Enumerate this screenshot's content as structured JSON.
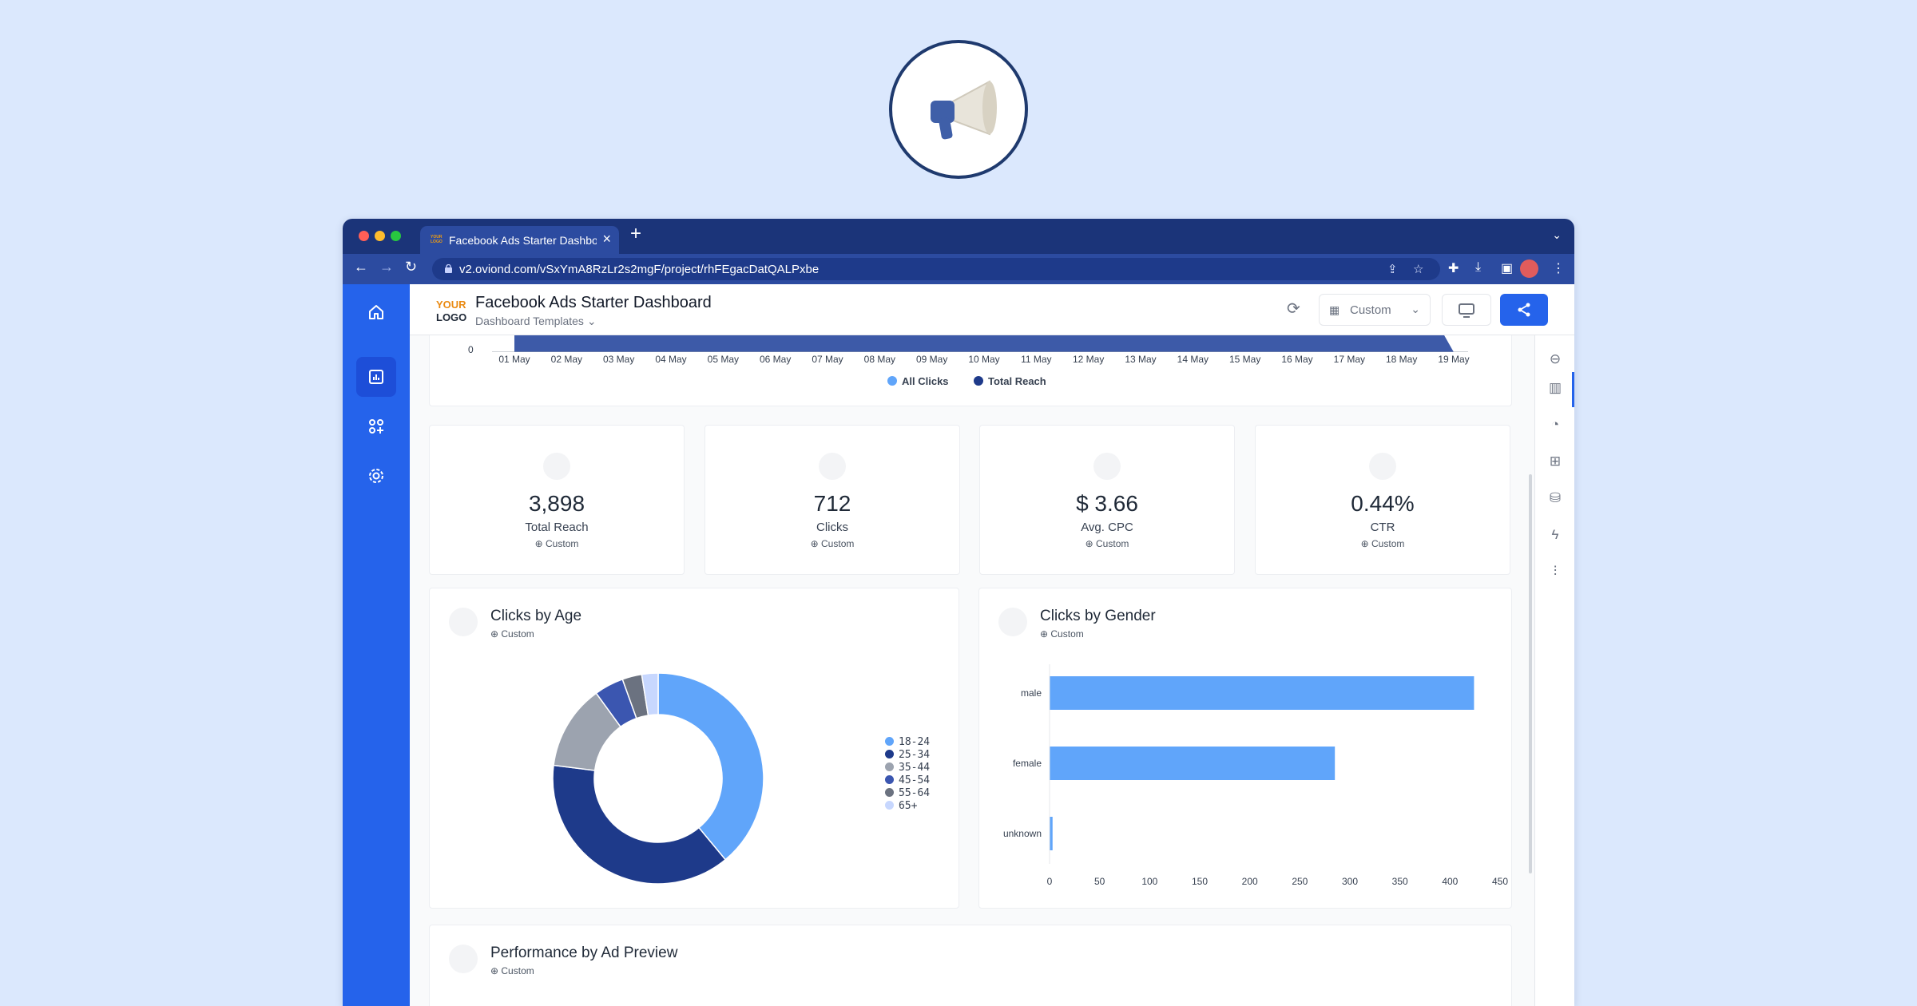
{
  "browser": {
    "tab_title": "Facebook Ads Starter Dashboard",
    "tab_favicon_text": "YOUR LOGO",
    "url": "v2.oviond.com/vSxYmA8RzLr2s2mgF/project/rhFEgacDatQALPxbe"
  },
  "header": {
    "logo_line1": "YOUR",
    "logo_line2": "LOGO",
    "title": "Facebook Ads Starter Dashboard",
    "subtitle": "Dashboard Templates",
    "date_range": "Custom"
  },
  "timeline": {
    "zero_label": "0",
    "dates": [
      "01 May",
      "02 May",
      "03 May",
      "04 May",
      "05 May",
      "06 May",
      "07 May",
      "08 May",
      "09 May",
      "10 May",
      "11 May",
      "12 May",
      "13 May",
      "14 May",
      "15 May",
      "16 May",
      "17 May",
      "18 May",
      "19 May"
    ],
    "legend": [
      {
        "label": "All Clicks",
        "color": "#60a5fa"
      },
      {
        "label": "Total Reach",
        "color": "#1e3a8a"
      }
    ]
  },
  "kpis": [
    {
      "value": "3,898",
      "label": "Total Reach",
      "range": "Custom"
    },
    {
      "value": "712",
      "label": "Clicks",
      "range": "Custom"
    },
    {
      "value": "$ 3.66",
      "label": "Avg. CPC",
      "range": "Custom"
    },
    {
      "value": "0.44%",
      "label": "CTR",
      "range": "Custom"
    }
  ],
  "age_widget": {
    "title": "Clicks by Age",
    "range": "Custom"
  },
  "gender_widget": {
    "title": "Clicks by Gender",
    "range": "Custom"
  },
  "perf_widget": {
    "title": "Performance by Ad Preview",
    "range": "Custom"
  },
  "chart_data": [
    {
      "type": "pie",
      "categories": [
        "18-24",
        "25-34",
        "35-44",
        "45-54",
        "55-64",
        "65+"
      ],
      "values": [
        39,
        38,
        13,
        4.5,
        3,
        2.5
      ],
      "colors": [
        "#60a5fa",
        "#1e3a8a",
        "#9ca3af",
        "#3b56b0",
        "#6b7280",
        "#c7d7fe"
      ],
      "legend": "right"
    },
    {
      "type": "bar",
      "orientation": "horizontal",
      "categories": [
        "male",
        "female",
        "unknown"
      ],
      "values": [
        424,
        285,
        3
      ],
      "xlim": [
        0,
        450
      ],
      "x_ticks": [
        0,
        50,
        100,
        150,
        200,
        250,
        300,
        350,
        400,
        450
      ],
      "color": "#60a5fa"
    }
  ]
}
